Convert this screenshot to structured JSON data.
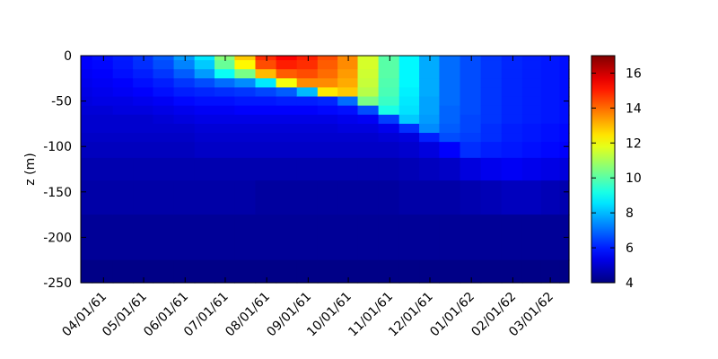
{
  "chart_data": {
    "type": "heatmap",
    "title": "",
    "xlabel": "",
    "ylabel": "z (m)",
    "x_dates": [
      "1961-03-15",
      "1961-04-01",
      "1961-04-15",
      "1961-05-01",
      "1961-05-15",
      "1961-06-01",
      "1961-06-15",
      "1961-07-01",
      "1961-07-15",
      "1961-08-01",
      "1961-08-15",
      "1961-09-01",
      "1961-09-15",
      "1961-10-01",
      "1961-10-15",
      "1961-11-01",
      "1961-11-15",
      "1961-12-01",
      "1961-12-15",
      "1962-01-01",
      "1962-01-15",
      "1962-02-01",
      "1962-02-15",
      "1962-03-01",
      "1962-03-15"
    ],
    "depths": [
      0,
      -10,
      -20,
      -30,
      -40,
      -50,
      -60,
      -70,
      -80,
      -90,
      -100,
      -125,
      -150,
      -200,
      -250
    ],
    "temperature_grid": [
      [
        5.6,
        5.6,
        5.5,
        5.4,
        5.3,
        5.2,
        5.1,
        5.0,
        5.0,
        4.9,
        4.8,
        4.6,
        4.5,
        4.3,
        4.1
      ],
      [
        5.8,
        5.7,
        5.6,
        5.5,
        5.4,
        5.3,
        5.1,
        5.0,
        5.0,
        4.9,
        4.8,
        4.6,
        4.5,
        4.3,
        4.1
      ],
      [
        6.0,
        5.9,
        5.8,
        5.6,
        5.5,
        5.3,
        5.2,
        5.0,
        5.0,
        4.9,
        4.8,
        4.6,
        4.5,
        4.3,
        4.1
      ],
      [
        6.3,
        6.2,
        6.0,
        5.8,
        5.6,
        5.4,
        5.2,
        5.0,
        5.0,
        4.9,
        4.8,
        4.6,
        4.5,
        4.3,
        4.1
      ],
      [
        6.8,
        6.6,
        6.3,
        6.0,
        5.8,
        5.5,
        5.3,
        5.1,
        5.0,
        4.9,
        4.8,
        4.6,
        4.5,
        4.3,
        4.1
      ],
      [
        7.6,
        7.3,
        6.8,
        6.3,
        6.0,
        5.7,
        5.4,
        5.2,
        5.0,
        4.9,
        4.8,
        4.6,
        4.5,
        4.3,
        4.1
      ],
      [
        8.6,
        8.2,
        7.6,
        6.6,
        6.1,
        5.8,
        5.5,
        5.3,
        5.1,
        5.0,
        4.9,
        4.6,
        4.5,
        4.3,
        4.1
      ],
      [
        10.6,
        10.2,
        9.0,
        7.0,
        6.2,
        5.8,
        5.5,
        5.3,
        5.1,
        5.0,
        4.9,
        4.6,
        4.5,
        4.3,
        4.1
      ],
      [
        12.8,
        12.2,
        10.4,
        7.4,
        6.3,
        5.9,
        5.6,
        5.3,
        5.1,
        5.0,
        4.9,
        4.6,
        4.5,
        4.3,
        4.1
      ],
      [
        14.8,
        14.4,
        13.0,
        8.6,
        6.5,
        5.9,
        5.6,
        5.3,
        5.1,
        5.0,
        4.9,
        4.6,
        4.4,
        4.3,
        4.1
      ],
      [
        15.4,
        15.0,
        14.2,
        12.0,
        6.8,
        6.0,
        5.6,
        5.3,
        5.1,
        5.0,
        4.9,
        4.6,
        4.4,
        4.3,
        4.1
      ],
      [
        15.0,
        14.8,
        14.4,
        13.6,
        8.0,
        6.0,
        5.6,
        5.3,
        5.1,
        5.0,
        4.9,
        4.6,
        4.4,
        4.3,
        4.1
      ],
      [
        14.4,
        14.2,
        14.0,
        13.6,
        12.4,
        6.1,
        5.7,
        5.3,
        5.1,
        5.0,
        4.9,
        4.6,
        4.4,
        4.3,
        4.1
      ],
      [
        13.6,
        13.6,
        13.4,
        13.2,
        12.8,
        7.0,
        5.8,
        5.4,
        5.2,
        5.0,
        4.9,
        4.6,
        4.4,
        4.3,
        4.1
      ],
      [
        11.6,
        11.6,
        11.5,
        11.4,
        11.2,
        10.4,
        6.6,
        5.5,
        5.2,
        5.0,
        4.9,
        4.6,
        4.4,
        4.3,
        4.1
      ],
      [
        10.0,
        10.0,
        10.0,
        9.9,
        9.8,
        9.6,
        9.2,
        6.4,
        5.4,
        5.1,
        4.9,
        4.6,
        4.4,
        4.3,
        4.1
      ],
      [
        8.8,
        8.8,
        8.8,
        8.8,
        8.7,
        8.6,
        8.5,
        8.2,
        6.2,
        5.2,
        5.0,
        4.7,
        4.5,
        4.3,
        4.1
      ],
      [
        7.8,
        7.8,
        7.8,
        7.8,
        7.8,
        7.7,
        7.7,
        7.6,
        7.4,
        6.0,
        5.2,
        4.8,
        4.5,
        4.3,
        4.1
      ],
      [
        7.0,
        7.0,
        7.0,
        7.0,
        7.0,
        7.0,
        6.9,
        6.9,
        6.8,
        6.6,
        5.6,
        4.9,
        4.5,
        4.3,
        4.1
      ],
      [
        6.6,
        6.6,
        6.6,
        6.6,
        6.6,
        6.6,
        6.6,
        6.5,
        6.5,
        6.4,
        6.2,
        5.2,
        4.6,
        4.3,
        4.1
      ],
      [
        6.3,
        6.3,
        6.3,
        6.3,
        6.3,
        6.3,
        6.3,
        6.3,
        6.2,
        6.2,
        6.0,
        5.4,
        4.7,
        4.3,
        4.1
      ],
      [
        6.1,
        6.1,
        6.1,
        6.1,
        6.1,
        6.1,
        6.1,
        6.1,
        6.0,
        6.0,
        5.9,
        5.5,
        4.8,
        4.3,
        4.1
      ],
      [
        6.0,
        6.0,
        6.0,
        6.0,
        6.0,
        6.0,
        6.0,
        6.0,
        5.9,
        5.9,
        5.8,
        5.4,
        4.8,
        4.3,
        4.1
      ],
      [
        5.9,
        5.9,
        5.9,
        5.9,
        5.9,
        5.9,
        5.9,
        5.9,
        5.8,
        5.8,
        5.7,
        5.3,
        4.7,
        4.3,
        4.1
      ],
      [
        5.8,
        5.8,
        5.8,
        5.8,
        5.8,
        5.8,
        5.8,
        5.8,
        5.7,
        5.7,
        5.6,
        5.2,
        4.6,
        4.3,
        4.1
      ]
    ],
    "x_range": [
      "1961-03-15",
      "1962-03-15"
    ],
    "y_range": [
      -250,
      0
    ],
    "y_ticks": [
      0,
      -50,
      -100,
      -150,
      -200,
      -250
    ],
    "x_ticks": [
      {
        "date": "1961-04-01",
        "label": "04/01/61"
      },
      {
        "date": "1961-05-01",
        "label": "05/01/61"
      },
      {
        "date": "1961-06-01",
        "label": "06/01/61"
      },
      {
        "date": "1961-07-01",
        "label": "07/01/61"
      },
      {
        "date": "1961-08-01",
        "label": "08/01/61"
      },
      {
        "date": "1961-09-01",
        "label": "09/01/61"
      },
      {
        "date": "1961-10-01",
        "label": "10/01/61"
      },
      {
        "date": "1961-11-01",
        "label": "11/01/61"
      },
      {
        "date": "1961-12-01",
        "label": "12/01/61"
      },
      {
        "date": "1962-01-01",
        "label": "01/01/62"
      },
      {
        "date": "1962-02-01",
        "label": "02/01/62"
      },
      {
        "date": "1962-03-01",
        "label": "03/01/62"
      }
    ],
    "colorbar": {
      "range": [
        4,
        17
      ],
      "ticks": [
        4,
        6,
        8,
        10,
        12,
        14,
        16
      ],
      "colormap": "jet"
    },
    "grid": false,
    "legend": "colorbar-right"
  }
}
